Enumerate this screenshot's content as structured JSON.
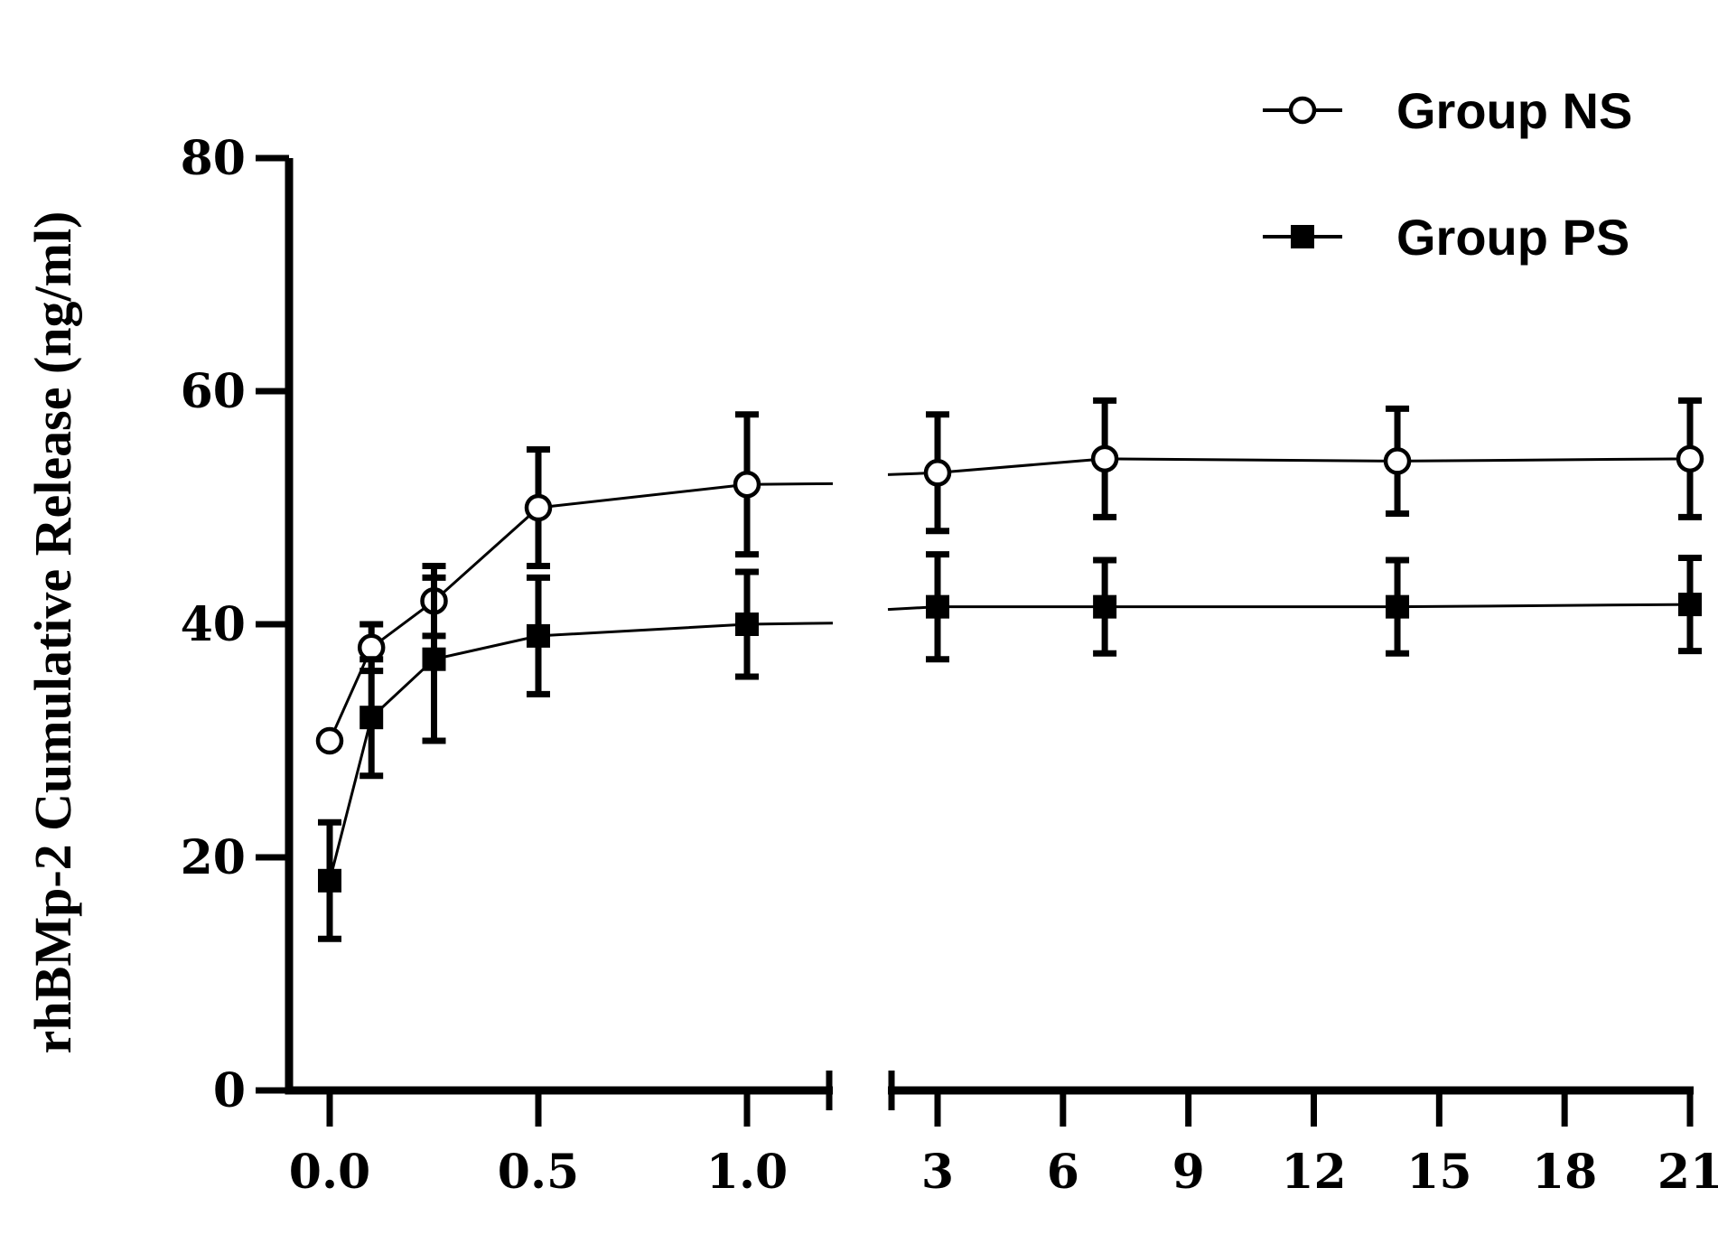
{
  "chart_data": {
    "type": "line",
    "title": "",
    "xlabel": "",
    "ylabel": "rhBMp-2 Cumulative Release (ng/ml)",
    "ylim": [
      0,
      80
    ],
    "yticks": [
      "0",
      "20",
      "40",
      "60",
      "80"
    ],
    "x_segments": [
      {
        "xlim": [
          -0.1,
          1.2
        ],
        "ticks": [
          "0.0",
          "0.5",
          "1.0"
        ]
      },
      {
        "xlim": [
          2.1,
          21
        ],
        "ticks": [
          "3",
          "6",
          "9",
          "12",
          "15",
          "18",
          "21"
        ]
      }
    ],
    "legend_position": "top-right",
    "grid": false,
    "series": [
      {
        "name": "Group NS",
        "marker": "open-circle",
        "x": [
          0,
          0.1,
          0.25,
          0.5,
          1.0,
          3,
          7,
          14,
          21
        ],
        "y": [
          30,
          38,
          42,
          50,
          52,
          53,
          54.2,
          54,
          54.2
        ],
        "err": [
          0,
          2,
          3,
          5,
          6,
          5,
          5,
          4.5,
          5
        ]
      },
      {
        "name": "Group PS",
        "marker": "filled-square",
        "x": [
          0,
          0.1,
          0.25,
          0.5,
          1.0,
          3,
          7,
          14,
          21
        ],
        "y": [
          18,
          32,
          37,
          39,
          40,
          41.5,
          41.5,
          41.5,
          41.7
        ],
        "err": [
          5,
          5,
          7,
          5,
          4.5,
          4.5,
          4,
          4,
          4
        ]
      }
    ]
  }
}
